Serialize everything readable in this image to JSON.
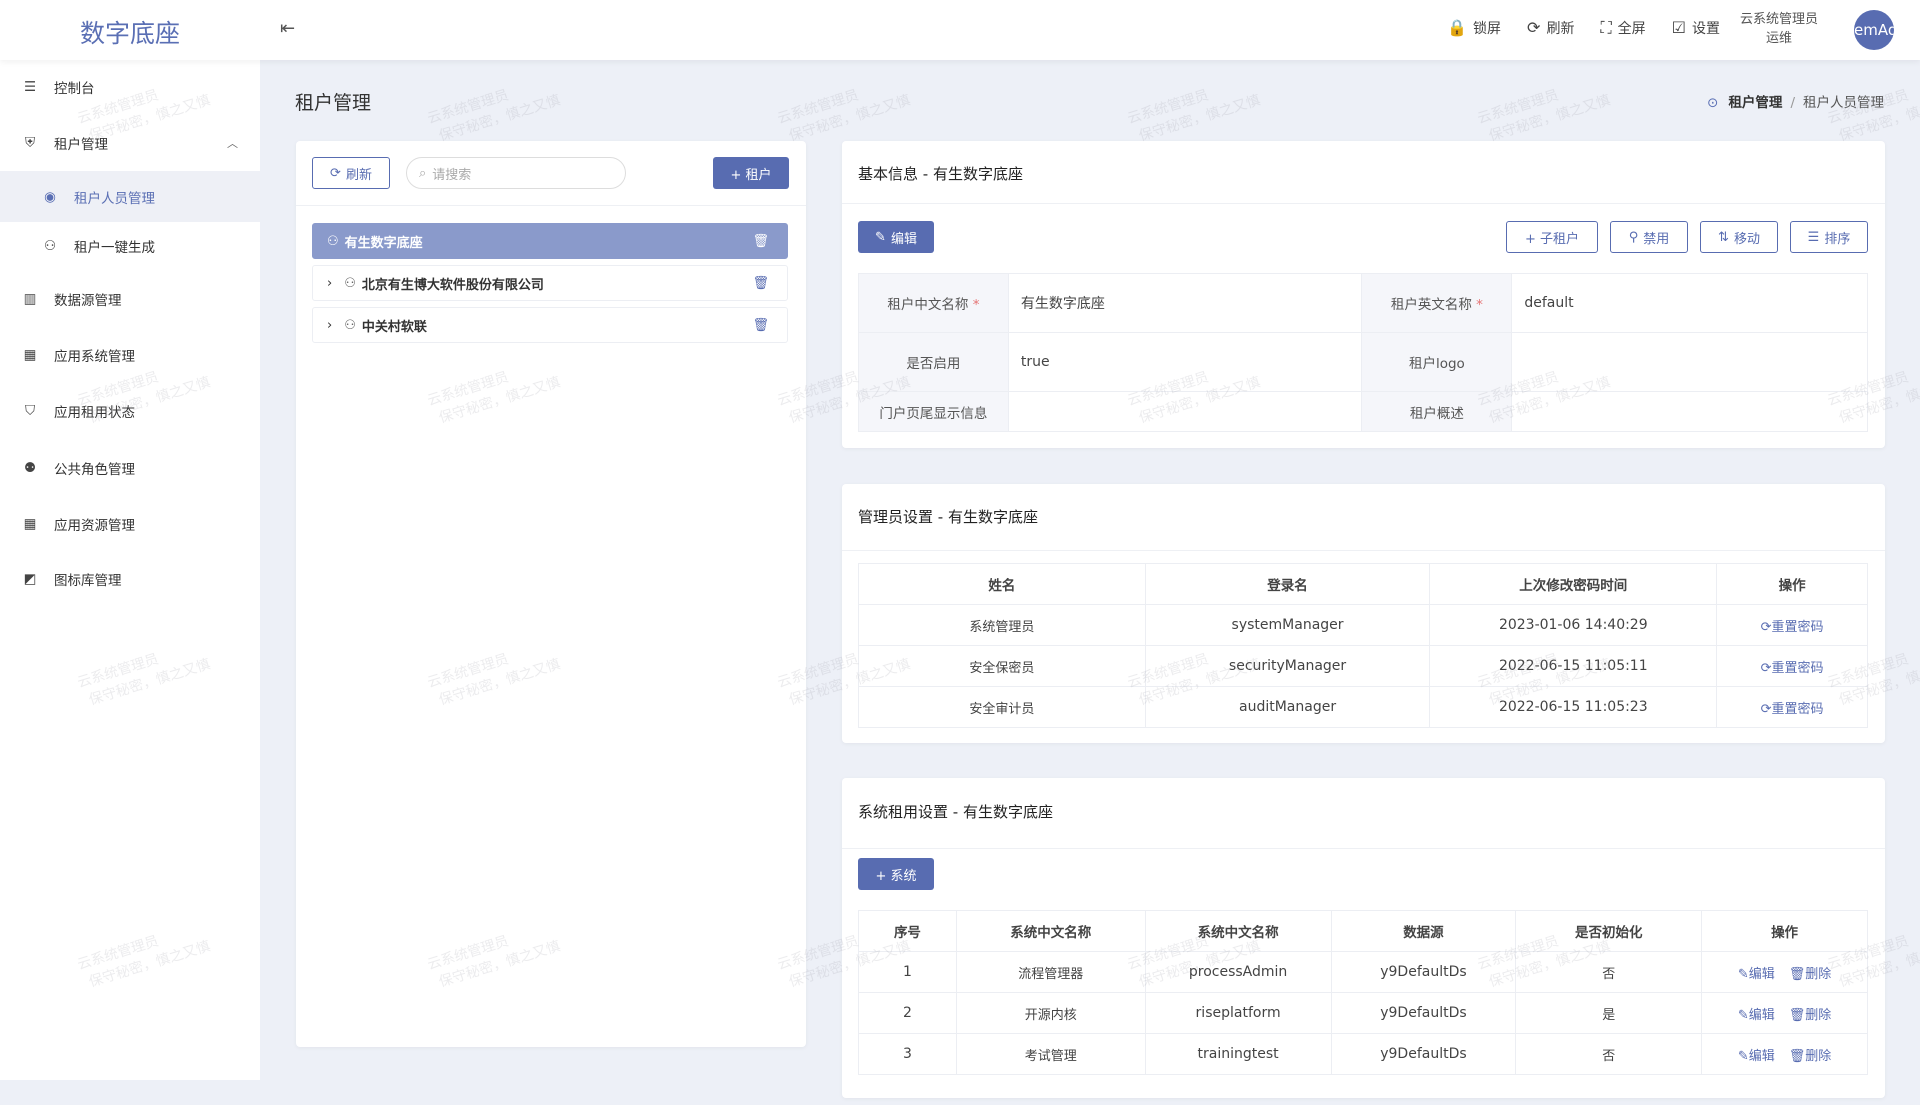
{
  "header": {
    "logo": "数字底座",
    "tools": [
      {
        "icon": "lock-icon",
        "glyph": "🔒",
        "label": "锁屏"
      },
      {
        "icon": "refresh-icon",
        "glyph": "⟳",
        "label": "刷新"
      },
      {
        "icon": "fullscreen-icon",
        "glyph": "⛶",
        "label": "全屏"
      },
      {
        "icon": "settings-edit-icon",
        "glyph": "☑",
        "label": "设置"
      }
    ],
    "user_name": "云系统管理员",
    "user_role": "运维",
    "avatar": "emAd"
  },
  "sidebar": {
    "items": [
      {
        "label": "控制台",
        "icon": "sliders-icon",
        "glyph": "☰"
      },
      {
        "label": "租户管理",
        "icon": "shield-user-icon",
        "glyph": "⛨"
      },
      {
        "label": "租户人员管理",
        "icon": "user-circle-icon",
        "glyph": "◉"
      },
      {
        "label": "租户一键生成",
        "icon": "user-gear-icon",
        "glyph": "⚇"
      },
      {
        "label": "数据源管理",
        "icon": "building-icon",
        "glyph": "▥"
      },
      {
        "label": "应用系统管理",
        "icon": "grid-icon",
        "glyph": "▦"
      },
      {
        "label": "应用租用状态",
        "icon": "shield-check-icon",
        "glyph": "⛉"
      },
      {
        "label": "公共角色管理",
        "icon": "users-icon",
        "glyph": "⚉"
      },
      {
        "label": "应用资源管理",
        "icon": "grid-icon",
        "glyph": "▦"
      },
      {
        "label": "图标库管理",
        "icon": "image-icon",
        "glyph": "◩"
      }
    ]
  },
  "page": {
    "title": "租户管理",
    "breadcrumb": [
      "租户管理",
      "租户人员管理"
    ]
  },
  "tree": {
    "refresh": "刷新",
    "search_placeholder": "请搜索",
    "add": "+ 租户",
    "nodes": [
      "有生数字底座",
      "北京有生博大软件股份有限公司",
      "中关村软联"
    ]
  },
  "basic": {
    "title": "基本信息 - 有生数字底座",
    "edit": "编辑",
    "buttons": [
      "+ 子租户",
      "禁用",
      "移动",
      "排序"
    ],
    "fields": [
      {
        "label": "租户中文名称",
        "value": "有生数字底座",
        "required": true
      },
      {
        "label": "租户英文名称",
        "value": "default",
        "required": true
      },
      {
        "label": "是否启用",
        "value": "true"
      },
      {
        "label": "租户logo",
        "value": ""
      },
      {
        "label": "门户页尾显示信息",
        "value": ""
      },
      {
        "label": "租户概述",
        "value": ""
      }
    ]
  },
  "admins": {
    "title": "管理员设置 - 有生数字底座",
    "columns": [
      "姓名",
      "登录名",
      "上次修改密码时间",
      "操作"
    ],
    "action": "重置密码",
    "rows": [
      [
        "系统管理员",
        "systemManager",
        "2023-01-06 14:40:29"
      ],
      [
        "安全保密员",
        "securityManager",
        "2022-06-15 11:05:11"
      ],
      [
        "安全审计员",
        "auditManager",
        "2022-06-15 11:05:23"
      ]
    ]
  },
  "systems": {
    "title": "系统租用设置 - 有生数字底座",
    "add": "+ 系统",
    "columns": [
      "序号",
      "系统中文名称",
      "系统中文名称",
      "数据源",
      "是否初始化",
      "操作"
    ],
    "edit": "编辑",
    "delete": "删除",
    "rows": [
      [
        "1",
        "流程管理器",
        "processAdmin",
        "y9DefaultDs",
        "否"
      ],
      [
        "2",
        "开源内核",
        "riseplatform",
        "y9DefaultDs",
        "是"
      ],
      [
        "3",
        "考试管理",
        "trainingtest",
        "y9DefaultDs",
        "否"
      ]
    ]
  },
  "watermark": [
    "云系统管理员",
    "保守秘密，慎之又慎"
  ],
  "colors": {
    "primary": "#586cb1",
    "selected_row": "#8a9acb",
    "background": "#edf0f7"
  }
}
